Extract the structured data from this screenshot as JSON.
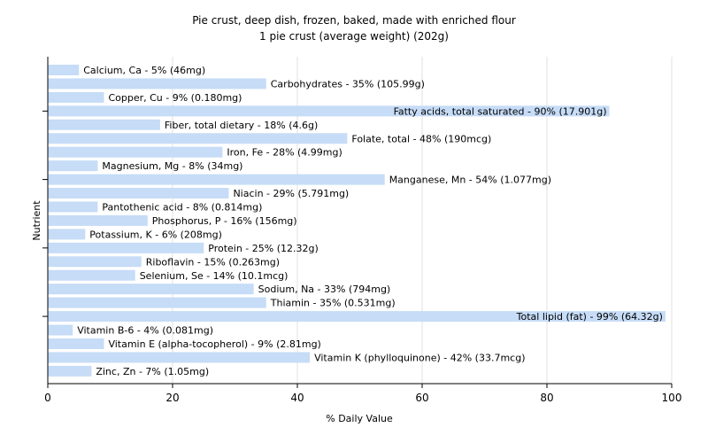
{
  "chart_data": {
    "type": "bar",
    "orientation": "horizontal",
    "title": "Pie crust, deep dish, frozen, baked, made with enriched flour",
    "subtitle": "1 pie crust (average weight) (202g)",
    "xlabel": "% Daily Value",
    "ylabel": "Nutrient",
    "xlim": [
      0,
      100
    ],
    "xticks": [
      0,
      20,
      40,
      60,
      80,
      100
    ],
    "grid": true,
    "bar_color": "#c6dcf7",
    "categories": [
      "Calcium, Ca",
      "Carbohydrates",
      "Copper, Cu",
      "Fatty acids, total saturated",
      "Fiber, total dietary",
      "Folate, total",
      "Iron, Fe",
      "Magnesium, Mg",
      "Manganese, Mn",
      "Niacin",
      "Pantothenic acid",
      "Phosphorus, P",
      "Potassium, K",
      "Protein",
      "Riboflavin",
      "Selenium, Se",
      "Sodium, Na",
      "Thiamin",
      "Total lipid (fat)",
      "Vitamin B-6",
      "Vitamin E (alpha-tocopherol)",
      "Vitamin K (phylloquinone)",
      "Zinc, Zn"
    ],
    "values": [
      5,
      35,
      9,
      90,
      18,
      48,
      28,
      8,
      54,
      29,
      8,
      16,
      6,
      25,
      15,
      14,
      33,
      35,
      99,
      4,
      9,
      42,
      7
    ],
    "labels": [
      "Calcium, Ca - 5% (46mg)",
      "Carbohydrates - 35% (105.99g)",
      "Copper, Cu - 9% (0.180mg)",
      "Fatty acids, total saturated - 90% (17.901g)",
      "Fiber, total dietary - 18% (4.6g)",
      "Folate, total - 48% (190mcg)",
      "Iron, Fe - 28% (4.99mg)",
      "Magnesium, Mg - 8% (34mg)",
      "Manganese, Mn - 54% (1.077mg)",
      "Niacin - 29% (5.791mg)",
      "Pantothenic acid - 8% (0.814mg)",
      "Phosphorus, P - 16% (156mg)",
      "Potassium, K - 6% (208mg)",
      "Protein - 25% (12.32g)",
      "Riboflavin - 15% (0.263mg)",
      "Selenium, Se - 14% (10.1mcg)",
      "Sodium, Na - 33% (794mg)",
      "Thiamin - 35% (0.531mg)",
      "Total lipid (fat) - 99% (64.32g)",
      "Vitamin B-6 - 4% (0.081mg)",
      "Vitamin E (alpha-tocopherol) - 9% (2.81mg)",
      "Vitamin K (phylloquinone) - 42% (33.7mcg)",
      "Zinc, Zn - 7% (1.05mg)"
    ]
  }
}
